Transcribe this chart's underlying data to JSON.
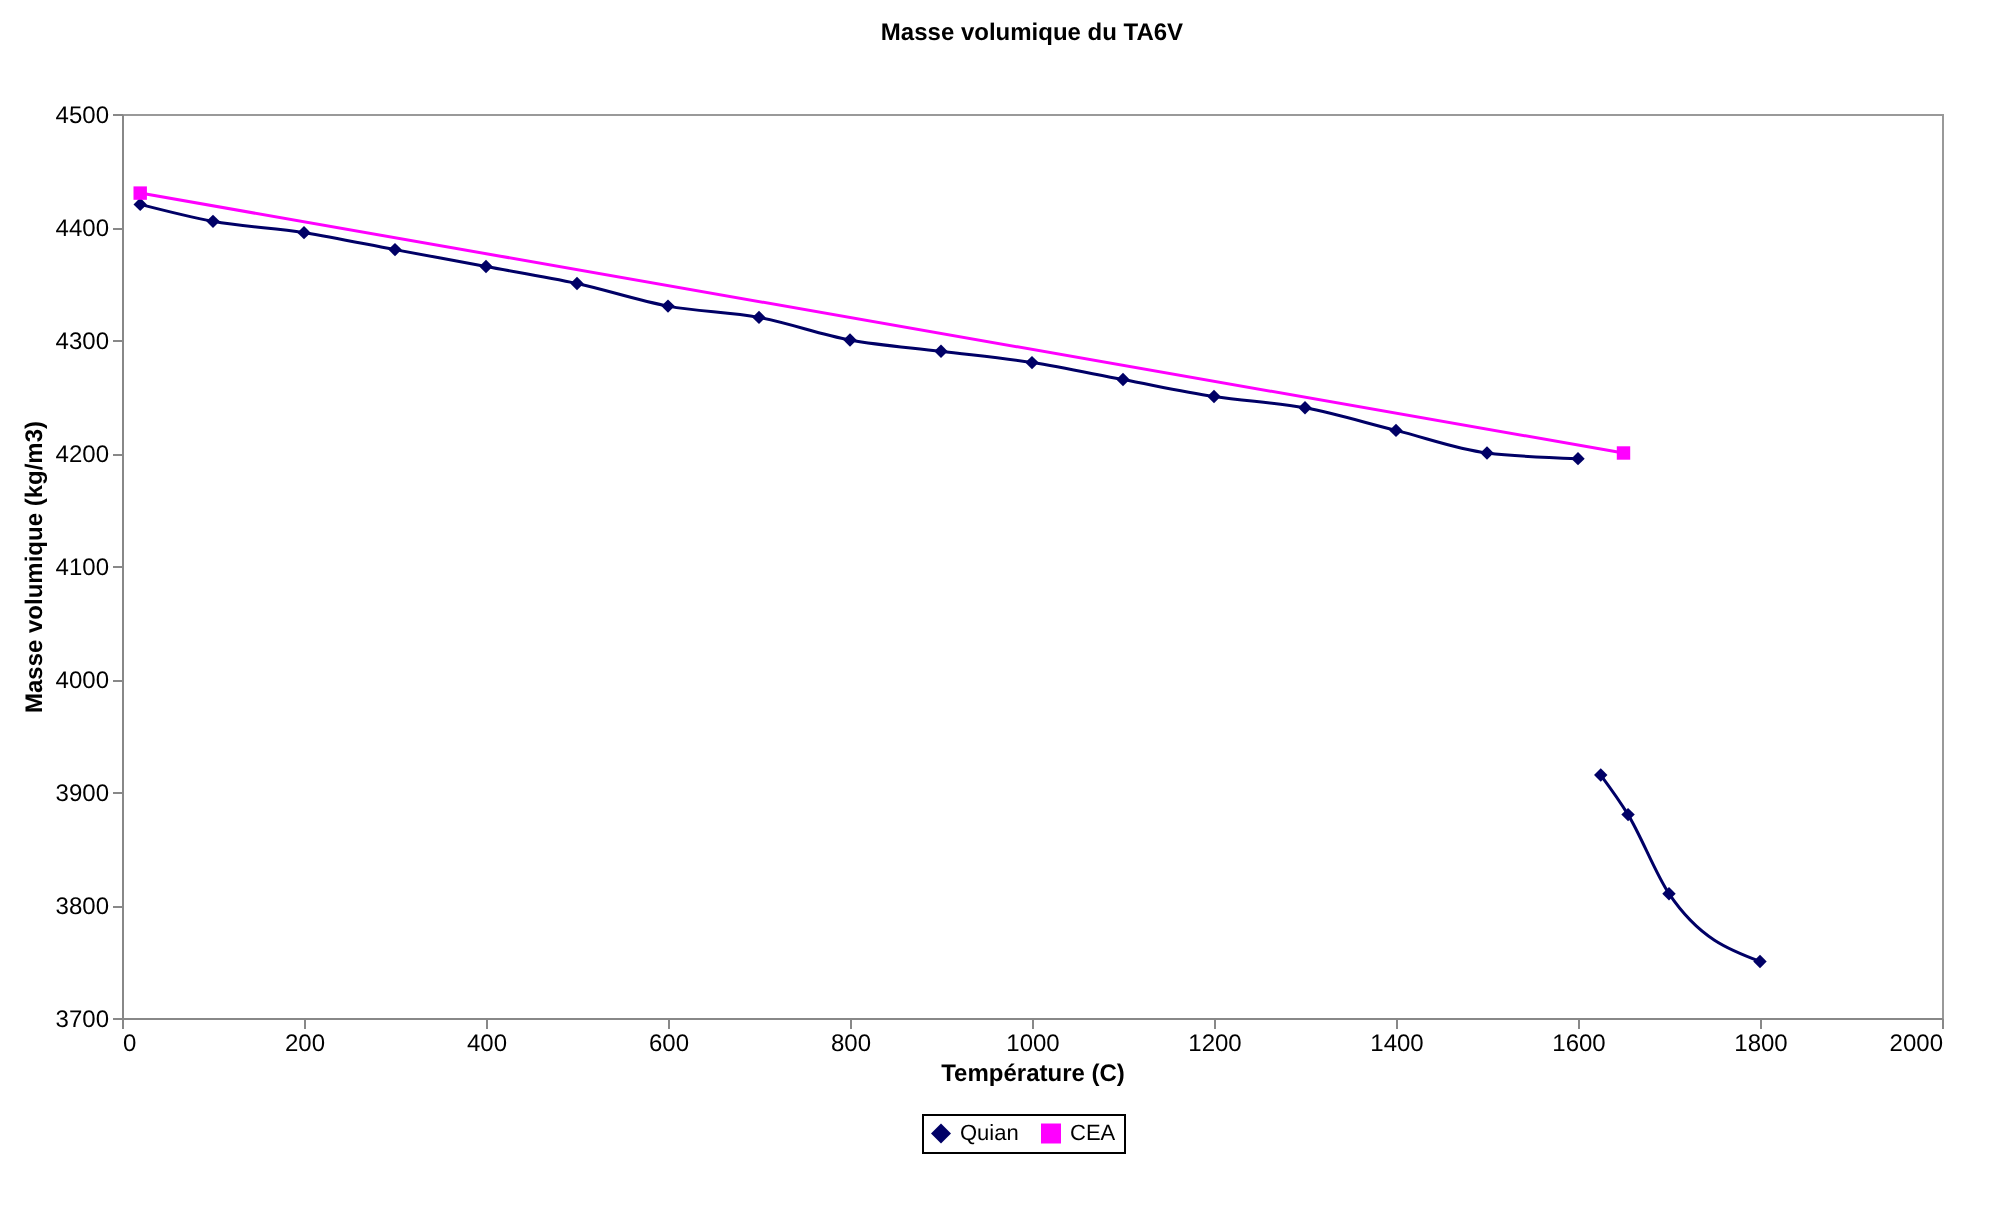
{
  "chart_data": {
    "type": "line",
    "title": "Masse volumique du TA6V",
    "xlabel": "Température (C)",
    "ylabel": "Masse volumique (kg/m3)",
    "xlim": [
      0,
      2000
    ],
    "xticks": [
      0,
      200,
      400,
      600,
      800,
      1000,
      1200,
      1400,
      1600,
      1800,
      2000
    ],
    "ylim": [
      3700,
      4500
    ],
    "yticks": [
      3700,
      3800,
      3900,
      4000,
      4100,
      4200,
      4300,
      4400,
      4500
    ],
    "grid": false,
    "legend": "bottom",
    "series": [
      {
        "name": "Quian",
        "color": "#000066",
        "marker": "diamond",
        "x": [
          20,
          100,
          200,
          300,
          400,
          500,
          600,
          700,
          800,
          900,
          1000,
          1100,
          1200,
          1300,
          1400,
          1500,
          1600,
          1610,
          1625,
          1655,
          1700,
          1800
        ],
        "values": [
          4420,
          4405,
          4395,
          4380,
          4365,
          4350,
          4330,
          4320,
          4300,
          4290,
          4280,
          4265,
          4250,
          4240,
          4220,
          4200,
          4195,
          null,
          3915,
          3880,
          3810,
          3750
        ]
      },
      {
        "name": "CEA",
        "color": "#ff00ff",
        "marker": "square",
        "x": [
          20,
          1650
        ],
        "values": [
          4430,
          4200
        ]
      }
    ]
  }
}
